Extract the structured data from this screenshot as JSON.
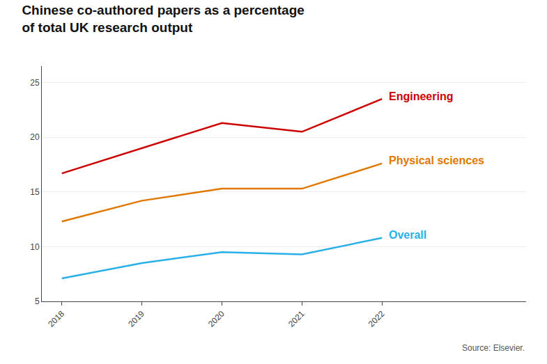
{
  "chart_data": {
    "type": "line",
    "title": "Chinese co-authored papers as a percentage\nof total UK research output",
    "x": [
      2018,
      2019,
      2020,
      2021,
      2022
    ],
    "series": [
      {
        "name": "Engineering",
        "color": "#cc0000",
        "values": [
          16.7,
          19.0,
          21.3,
          20.5,
          23.5
        ]
      },
      {
        "name": "Physical sciences",
        "color": "#e07800",
        "values": [
          12.3,
          14.2,
          15.3,
          15.3,
          17.6
        ]
      },
      {
        "name": "Overall",
        "color": "#2ab0e8",
        "values": [
          7.1,
          8.5,
          9.5,
          9.3,
          10.8
        ]
      }
    ],
    "xlim": [
      2017.75,
      2023.8
    ],
    "xticks": [
      2018,
      2019,
      2020,
      2021,
      2022
    ],
    "ylim": [
      5,
      26.5
    ],
    "yticks": [
      5,
      10,
      15,
      20,
      25
    ],
    "grid": true,
    "annotations": [
      "Source: Elsevier."
    ]
  }
}
